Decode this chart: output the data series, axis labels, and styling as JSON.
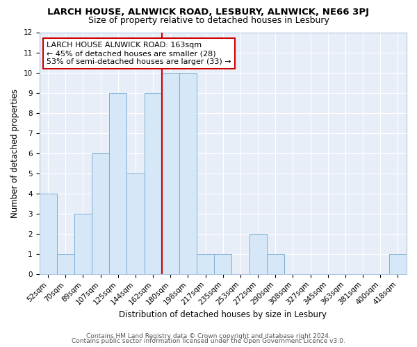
{
  "title": "LARCH HOUSE, ALNWICK ROAD, LESBURY, ALNWICK, NE66 3PJ",
  "subtitle": "Size of property relative to detached houses in Lesbury",
  "xlabel": "Distribution of detached houses by size in Lesbury",
  "ylabel": "Number of detached properties",
  "bar_labels": [
    "52sqm",
    "70sqm",
    "89sqm",
    "107sqm",
    "125sqm",
    "144sqm",
    "162sqm",
    "180sqm",
    "198sqm",
    "217sqm",
    "235sqm",
    "253sqm",
    "272sqm",
    "290sqm",
    "308sqm",
    "327sqm",
    "345sqm",
    "363sqm",
    "381sqm",
    "400sqm",
    "418sqm"
  ],
  "bar_values": [
    4,
    1,
    3,
    6,
    9,
    5,
    9,
    10,
    10,
    1,
    1,
    0,
    2,
    1,
    0,
    0,
    0,
    0,
    0,
    0,
    1
  ],
  "bar_color": "#d6e8f7",
  "bar_edge_color": "#7aafd4",
  "vline_index": 6,
  "vline_color": "#cc0000",
  "annotation_text": "LARCH HOUSE ALNWICK ROAD: 163sqm\n← 45% of detached houses are smaller (28)\n53% of semi-detached houses are larger (33) →",
  "annotation_box_color": "#ffffff",
  "annotation_box_edge": "#cc0000",
  "ylim": [
    0,
    12
  ],
  "yticks": [
    0,
    1,
    2,
    3,
    4,
    5,
    6,
    7,
    8,
    9,
    10,
    11,
    12
  ],
  "footer_line1": "Contains HM Land Registry data © Crown copyright and database right 2024.",
  "footer_line2": "Contains public sector information licensed under the Open Government Licence v3.0.",
  "bg_color": "#ffffff",
  "plot_bg_color": "#e8eef8",
  "grid_color": "#ffffff",
  "title_fontsize": 9.5,
  "subtitle_fontsize": 9,
  "axis_label_fontsize": 8.5,
  "tick_fontsize": 7.5,
  "annotation_fontsize": 8,
  "footer_fontsize": 6.5
}
